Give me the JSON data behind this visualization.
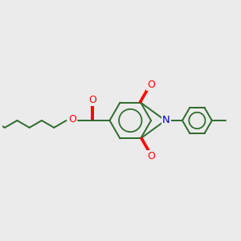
{
  "background_color": "#ebebeb",
  "bond_color": "#2d6b2d",
  "oxygen_color": "#ff0000",
  "nitrogen_color": "#0000cc",
  "line_width": 1.4,
  "figsize": [
    3.0,
    3.0
  ],
  "dpi": 100,
  "xlim": [
    0,
    12
  ],
  "ylim": [
    0,
    12
  ]
}
